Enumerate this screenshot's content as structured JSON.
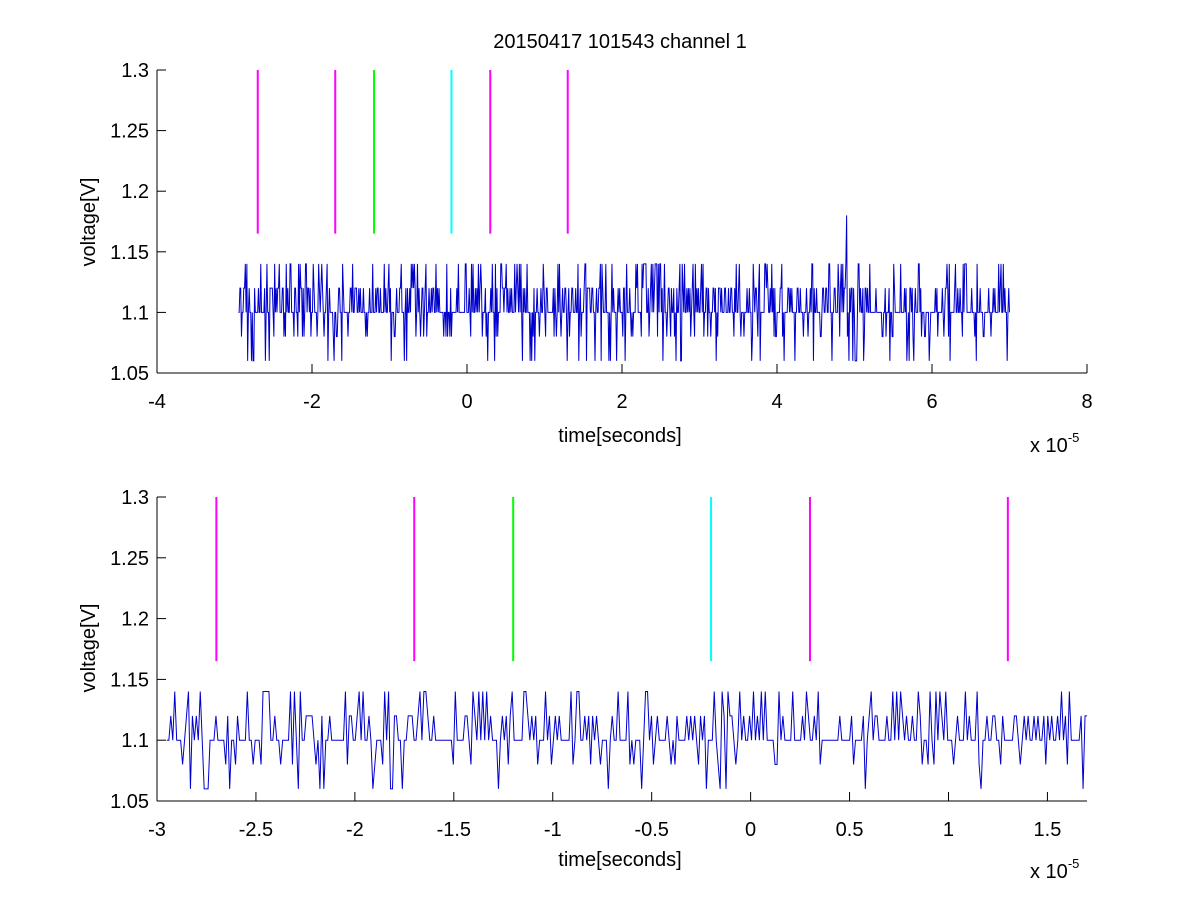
{
  "figure": {
    "title": "20150417 101543 channel 1"
  },
  "chart_data": [
    {
      "type": "line",
      "xlabel": "time[seconds]",
      "ylabel": "voltage[V]",
      "x_exponent_label": "x 10",
      "x_exponent": "-5",
      "xlim": [
        -4,
        8
      ],
      "ylim": [
        1.05,
        1.3
      ],
      "xticks": [
        -4,
        -2,
        0,
        2,
        4,
        6,
        8
      ],
      "xtick_labels": [
        "-4",
        "-2",
        "0",
        "2",
        "4",
        "6",
        "8"
      ],
      "yticks": [
        1.05,
        1.1,
        1.15,
        1.2,
        1.25,
        1.3
      ],
      "ytick_labels": [
        "1.05",
        "1.1",
        "1.15",
        "1.2",
        "1.25",
        "1.3"
      ],
      "grid": false,
      "markers": [
        {
          "x": -2.7,
          "y0": 1.165,
          "y1": 1.3,
          "color": "#ff00ff"
        },
        {
          "x": -1.7,
          "y0": 1.165,
          "y1": 1.3,
          "color": "#ff00ff"
        },
        {
          "x": -1.2,
          "y0": 1.165,
          "y1": 1.3,
          "color": "#00ff00"
        },
        {
          "x": -0.2,
          "y0": 1.165,
          "y1": 1.3,
          "color": "#00ffff"
        },
        {
          "x": 0.3,
          "y0": 1.165,
          "y1": 1.3,
          "color": "#ff00ff"
        },
        {
          "x": 1.3,
          "y0": 1.165,
          "y1": 1.3,
          "color": "#ff00ff"
        }
      ],
      "signal": {
        "color": "#0000cc",
        "x_start": -2.95,
        "x_end": 7.0,
        "samples": 1000,
        "levels": [
          1.06,
          1.08,
          1.1,
          1.12,
          1.14
        ],
        "peak": {
          "x": 4.9,
          "y": 1.18
        }
      }
    },
    {
      "type": "line",
      "xlabel": "time[seconds]",
      "ylabel": "voltage[V]",
      "x_exponent_label": "x 10",
      "x_exponent": "-5",
      "xlim": [
        -3.0,
        1.7
      ],
      "ylim": [
        1.05,
        1.3
      ],
      "xticks": [
        -3,
        -2.5,
        -2,
        -1.5,
        -1,
        -0.5,
        0,
        0.5,
        1,
        1.5
      ],
      "xtick_labels": [
        "-3",
        "-2.5",
        "-2",
        "-1.5",
        "-1",
        "-0.5",
        "0",
        "0.5",
        "1",
        "1.5"
      ],
      "yticks": [
        1.05,
        1.1,
        1.15,
        1.2,
        1.25,
        1.3
      ],
      "ytick_labels": [
        "1.05",
        "1.1",
        "1.15",
        "1.2",
        "1.25",
        "1.3"
      ],
      "grid": false,
      "markers": [
        {
          "x": -2.7,
          "y0": 1.165,
          "y1": 1.3,
          "color": "#ff00ff"
        },
        {
          "x": -1.7,
          "y0": 1.165,
          "y1": 1.3,
          "color": "#ff00ff"
        },
        {
          "x": -1.2,
          "y0": 1.165,
          "y1": 1.3,
          "color": "#00ff00"
        },
        {
          "x": -0.2,
          "y0": 1.165,
          "y1": 1.3,
          "color": "#00ffff"
        },
        {
          "x": 0.3,
          "y0": 1.165,
          "y1": 1.3,
          "color": "#ff00ff"
        },
        {
          "x": 1.3,
          "y0": 1.165,
          "y1": 1.3,
          "color": "#ff00ff"
        }
      ],
      "signal": {
        "color": "#0000cc",
        "x_start": -2.95,
        "x_end": 1.7,
        "samples": 470,
        "levels": [
          1.06,
          1.08,
          1.1,
          1.12,
          1.14
        ]
      }
    }
  ]
}
